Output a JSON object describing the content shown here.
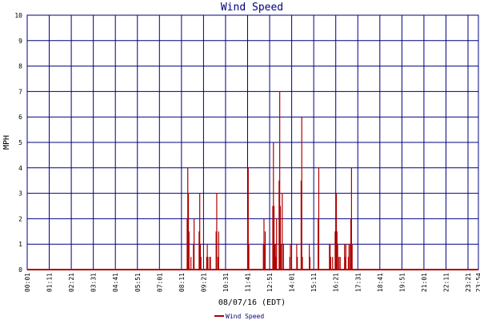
{
  "colors": {
    "grid": "#000080",
    "series": "#b00000",
    "accent_bar": "#000080",
    "title": "#000080",
    "background": "#ffffff"
  },
  "chart_data": {
    "type": "bar",
    "title": "Wind Speed",
    "xlabel": "08/07/16 (EDT)",
    "ylabel": "MPH",
    "ylim": [
      0,
      10
    ],
    "yticks": [
      "0",
      "1",
      "2",
      "3",
      "4",
      "5",
      "6",
      "7",
      "8",
      "9",
      "10"
    ],
    "xlim": [
      "00:01",
      "23:54"
    ],
    "xticks": [
      "00:01",
      "01:11",
      "02:21",
      "03:31",
      "04:41",
      "05:51",
      "07:01",
      "08:11",
      "09:21",
      "10:31",
      "11:41",
      "12:51",
      "14:01",
      "15:11",
      "16:21",
      "17:31",
      "18:41",
      "19:51",
      "21:01",
      "22:11",
      "23:21",
      "23:54"
    ],
    "grid": true,
    "legend_position": "bottom",
    "series": [
      {
        "name": "Wind Speed",
        "x": [
          "08:29",
          "08:31",
          "08:33",
          "08:35",
          "08:41",
          "08:49",
          "08:51",
          "09:07",
          "09:09",
          "09:11",
          "09:13",
          "09:31",
          "09:33",
          "09:35",
          "09:41",
          "09:43",
          "10:01",
          "10:03",
          "10:07",
          "10:09",
          "11:41",
          "11:43",
          "11:45",
          "12:31",
          "12:33",
          "12:35",
          "12:37",
          "13:01",
          "13:03",
          "13:05",
          "13:07",
          "13:09",
          "13:11",
          "13:13",
          "13:21",
          "13:23",
          "13:25",
          "13:27",
          "13:31",
          "13:35",
          "13:55",
          "13:57",
          "14:17",
          "14:19",
          "14:31",
          "14:33",
          "14:35",
          "14:57",
          "14:59",
          "15:25",
          "15:27",
          "16:01",
          "16:03",
          "16:05",
          "16:11",
          "16:19",
          "16:21",
          "16:23",
          "16:25",
          "16:27",
          "16:31",
          "16:35",
          "16:49",
          "16:51",
          "16:53",
          "17:01",
          "17:03",
          "17:07",
          "17:09",
          "17:11",
          "17:13"
        ],
        "values": [
          2.0,
          4.0,
          3.0,
          1.5,
          0.5,
          1.0,
          2.0,
          1.5,
          3.0,
          1.0,
          0.5,
          0.5,
          1.0,
          0.5,
          0.5,
          0.5,
          1.5,
          3.0,
          0.5,
          1.5,
          2.0,
          4.0,
          1.0,
          1.0,
          2.0,
          1.0,
          1.5,
          2.5,
          5.0,
          2.5,
          1.0,
          1.0,
          0.5,
          2.0,
          3.5,
          7.0,
          2.5,
          1.0,
          3.0,
          1.0,
          0.5,
          1.0,
          1.0,
          0.5,
          3.5,
          6.0,
          0.5,
          1.0,
          0.5,
          2.0,
          4.0,
          1.0,
          1.0,
          0.5,
          0.5,
          1.5,
          1.0,
          3.0,
          1.5,
          1.0,
          0.5,
          0.5,
          1.0,
          0.5,
          1.0,
          0.5,
          1.0,
          1.0,
          2.0,
          4.0,
          1.0
        ]
      }
    ]
  }
}
